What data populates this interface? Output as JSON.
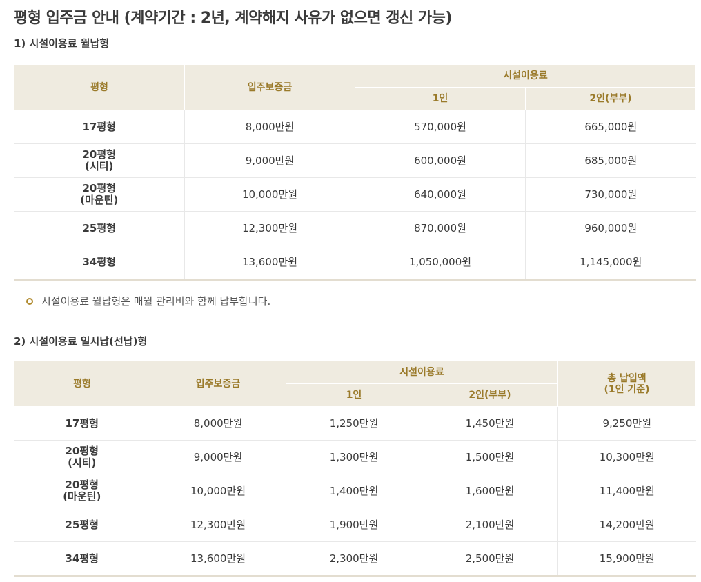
{
  "title": "평형 입주금 안내 (계약기간 : 2년, 계약해지 사유가 없으면 갱신 가능)",
  "section1": {
    "heading": "1) 시설이용료 월납형",
    "headers": {
      "pyeong": "평형",
      "deposit": "입주보증금",
      "facility": "시설이용료",
      "one": "1인",
      "two": "2인(부부)"
    },
    "rows": [
      {
        "type_line1": "17평형",
        "type_line2": "",
        "deposit": "8,000만원",
        "one": "570,000원",
        "two": "665,000원"
      },
      {
        "type_line1": "20평형",
        "type_line2": "(시티)",
        "deposit": "9,000만원",
        "one": "600,000원",
        "two": "685,000원"
      },
      {
        "type_line1": "20평형",
        "type_line2": "(마운틴)",
        "deposit": "10,000만원",
        "one": "640,000원",
        "two": "730,000원"
      },
      {
        "type_line1": "25평형",
        "type_line2": "",
        "deposit": "12,300만원",
        "one": "870,000원",
        "two": "960,000원"
      },
      {
        "type_line1": "34평형",
        "type_line2": "",
        "deposit": "13,600만원",
        "one": "1,050,000원",
        "two": "1,145,000원"
      }
    ],
    "note": "시설이용료 월납형은 매월 관리비와 함께 납부합니다."
  },
  "section2": {
    "heading": "2) 시설이용료 일시납(선납)형",
    "headers": {
      "pyeong": "평형",
      "deposit": "입주보증금",
      "facility": "시설이용료",
      "one": "1인",
      "two": "2인(부부)",
      "total_line1": "총 납입액",
      "total_line2": "(1인 기준)"
    },
    "rows": [
      {
        "type_line1": "17평형",
        "type_line2": "",
        "deposit": "8,000만원",
        "one": "1,250만원",
        "two": "1,450만원",
        "total": "9,250만원"
      },
      {
        "type_line1": "20평형",
        "type_line2": "(시티)",
        "deposit": "9,000만원",
        "one": "1,300만원",
        "two": "1,500만원",
        "total": "10,300만원"
      },
      {
        "type_line1": "20평형",
        "type_line2": "(마운틴)",
        "deposit": "10,000만원",
        "one": "1,400만원",
        "two": "1,600만원",
        "total": "11,400만원"
      },
      {
        "type_line1": "25평형",
        "type_line2": "",
        "deposit": "12,300만원",
        "one": "1,900만원",
        "two": "2,100만원",
        "total": "14,200만원"
      },
      {
        "type_line1": "34평형",
        "type_line2": "",
        "deposit": "13,600만원",
        "one": "2,300만원",
        "two": "2,500만원",
        "total": "15,900만원"
      }
    ]
  },
  "colors": {
    "header_bg": "#efebe0",
    "header_text": "#9a7a2a",
    "bullet": "#b08a2e"
  }
}
